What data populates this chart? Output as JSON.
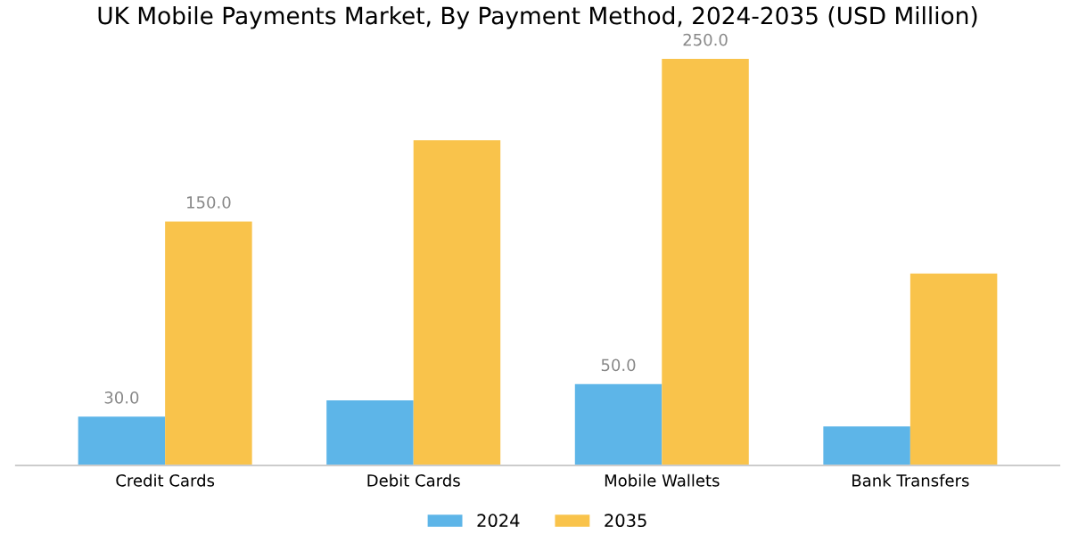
{
  "chart_data": {
    "type": "bar",
    "title": "UK Mobile Payments Market, By Payment Method, 2024-2035 (USD Million)",
    "categories": [
      "Credit Cards",
      "Debit Cards",
      "Mobile Wallets",
      "Bank Transfers"
    ],
    "series": [
      {
        "name": "2024",
        "color": "#5db5e8",
        "values": [
          30,
          40,
          50,
          24
        ],
        "value_labels": [
          "30.0",
          null,
          "50.0",
          null
        ]
      },
      {
        "name": "2035",
        "color": "#f9c34b",
        "values": [
          150,
          200,
          250,
          118
        ],
        "value_labels": [
          "150.0",
          null,
          "250.0",
          null
        ]
      }
    ],
    "legend": "bottom",
    "grid": false
  }
}
